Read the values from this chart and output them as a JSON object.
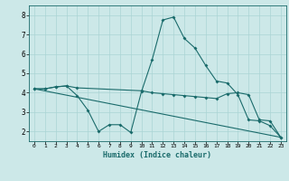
{
  "xlabel": "Humidex (Indice chaleur)",
  "bg_color": "#cce8e8",
  "line_color": "#1a6b6b",
  "grid_color": "#aad4d4",
  "xlim": [
    -0.5,
    23.5
  ],
  "ylim": [
    1.5,
    8.5
  ],
  "xticks": [
    0,
    1,
    2,
    3,
    4,
    5,
    6,
    7,
    8,
    9,
    10,
    11,
    12,
    13,
    14,
    15,
    16,
    17,
    18,
    19,
    20,
    21,
    22,
    23
  ],
  "yticks": [
    2,
    3,
    4,
    5,
    6,
    7,
    8
  ],
  "series1_x": [
    0,
    1,
    2,
    3,
    4,
    5,
    6,
    7,
    8,
    9,
    10,
    11,
    12,
    13,
    14,
    15,
    16,
    17,
    18,
    19,
    20,
    21,
    22,
    23
  ],
  "series1_y": [
    4.2,
    4.2,
    4.3,
    4.35,
    3.85,
    3.1,
    2.0,
    2.35,
    2.35,
    1.95,
    4.05,
    5.7,
    7.75,
    7.9,
    6.8,
    6.3,
    5.4,
    4.6,
    4.5,
    3.9,
    2.6,
    2.55,
    2.3,
    1.7
  ],
  "series2_x": [
    0,
    1,
    2,
    3,
    4,
    10,
    11,
    12,
    13,
    14,
    15,
    16,
    17,
    18,
    19,
    20,
    21,
    22,
    23
  ],
  "series2_y": [
    4.2,
    4.2,
    4.3,
    4.35,
    4.25,
    4.1,
    4.0,
    3.95,
    3.9,
    3.85,
    3.8,
    3.75,
    3.7,
    3.95,
    4.0,
    3.9,
    2.6,
    2.55,
    1.7
  ],
  "series3_x": [
    0,
    23
  ],
  "series3_y": [
    4.2,
    1.7
  ]
}
